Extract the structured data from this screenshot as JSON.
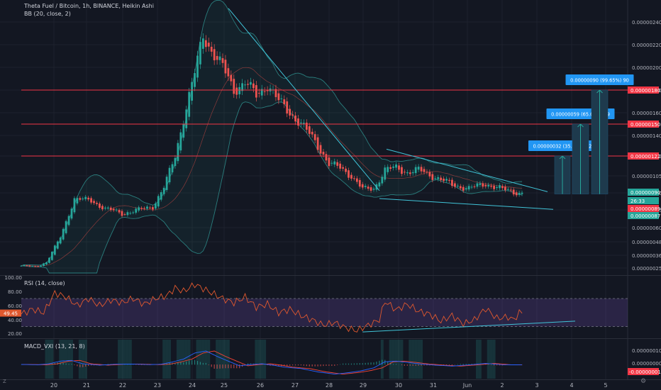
{
  "header": {
    "symbol_line": "Theta Fuel / Bitcoin, 1h, BINANCE, Heikin Ashi",
    "indicator_bb": "BB (20, close, 2)",
    "indicator_rsi": "RSI (14, close)",
    "indicator_macd": "MACD_VXI (13, 21, 8)",
    "corner_left": "Z",
    "gear_icon": "gear-icon"
  },
  "colors": {
    "background": "#131722",
    "grid": "#1e222d",
    "up_candle": "#26a69a",
    "down_candle": "#ef5350",
    "bb_band": "#2a7d7d",
    "bb_fill": "rgba(38,166,154,0.08)",
    "resistance_line": "#f23645",
    "trend_line": "#40c4d8",
    "target_bar": "#1e3a4d",
    "target_label_bg": "#2196f3",
    "rsi_line": "#e0582e",
    "rsi_band_fill": "rgba(126,87,194,0.22)",
    "macd_line": "#2962ff",
    "signal_line": "#f44336",
    "macd_bg": "rgba(38,166,154,0.20)"
  },
  "chart_data": [
    {
      "type": "candlestick",
      "name": "price",
      "price_axis": [
        "0.00000240",
        "0.00000220",
        "0.00000200",
        "0.00000180",
        "0.00000160",
        "0.00000140",
        "0.00000122",
        "0.00000105",
        "0.00000090",
        "0.00000075",
        "0.00000060",
        "0.00000048",
        "0.00000036",
        "0.00000025"
      ],
      "time_axis": [
        "20",
        "21",
        "22",
        "23",
        "24",
        "25",
        "26",
        "27",
        "28",
        "29",
        "30",
        "31",
        "Jun",
        "2",
        "3",
        "4",
        "5"
      ],
      "resistance_levels": [
        {
          "value": "0.00000180",
          "label": "0.00000180"
        },
        {
          "value": "0.00000150",
          "label": "0.00000150"
        },
        {
          "value": "0.00000122",
          "label": "0.00000122"
        }
      ],
      "price_tags": [
        {
          "label": "0.00000090",
          "color": "#26a69a"
        },
        {
          "label": "26:33",
          "color": "#26a69a"
        },
        {
          "label": "0.00000089",
          "color": "#f23645"
        },
        {
          "label": "0.00000087",
          "color": "#26a69a"
        }
      ],
      "targets": [
        {
          "label": "0.00000032 (35.01%) 32",
          "top_value": 1.22e-06
        },
        {
          "label": "0.00000059 (65.02%) 59",
          "top_value": 1.5e-06
        },
        {
          "label": "0.00000090 (99.65%) 90",
          "top_value": 1.8e-06
        }
      ],
      "anchors": [
        [
          0,
          2.7e-07
        ],
        [
          5,
          2.6e-07
        ],
        [
          9,
          3e-07
        ],
        [
          14,
          5.2e-07
        ],
        [
          19,
          8.5e-07
        ],
        [
          25,
          8.3e-07
        ],
        [
          30,
          7.6e-07
        ],
        [
          36,
          7.2e-07
        ],
        [
          42,
          7.5e-07
        ],
        [
          47,
          7.8e-07
        ],
        [
          51,
          9.5e-07
        ],
        [
          55,
          1.22e-06
        ],
        [
          58,
          1.55e-06
        ],
        [
          62,
          1.95e-06
        ],
        [
          65,
          2.28e-06
        ],
        [
          68,
          2.15e-06
        ],
        [
          72,
          2e-06
        ],
        [
          76,
          1.8e-06
        ],
        [
          80,
          1.87e-06
        ],
        [
          84,
          1.75e-06
        ],
        [
          88,
          1.85e-06
        ],
        [
          92,
          1.7e-06
        ],
        [
          96,
          1.6e-06
        ],
        [
          100,
          1.5e-06
        ],
        [
          105,
          1.35e-06
        ],
        [
          110,
          1.15e-06
        ],
        [
          114,
          1.12e-06
        ],
        [
          118,
          1.05e-06
        ],
        [
          122,
          9.3e-07
        ],
        [
          126,
          9.4e-07
        ],
        [
          130,
          1.1e-06
        ],
        [
          134,
          1.12e-06
        ],
        [
          138,
          1.08e-06
        ],
        [
          142,
          1.1e-06
        ],
        [
          148,
          1.04e-06
        ],
        [
          154,
          9.7e-07
        ],
        [
          160,
          9.4e-07
        ],
        [
          166,
          9.8e-07
        ],
        [
          172,
          9.3e-07
        ],
        [
          178,
          9e-07
        ]
      ]
    },
    {
      "type": "line",
      "name": "RSI",
      "axis": [
        "100.00",
        "80.00",
        "60.00",
        "40.00",
        "20.00"
      ],
      "levels": [
        70,
        30
      ],
      "last_label": "49.45",
      "anchors": [
        [
          0,
          48
        ],
        [
          4,
          55
        ],
        [
          8,
          50
        ],
        [
          12,
          78
        ],
        [
          16,
          72
        ],
        [
          20,
          60
        ],
        [
          24,
          70
        ],
        [
          28,
          60
        ],
        [
          32,
          68
        ],
        [
          36,
          64
        ],
        [
          40,
          70
        ],
        [
          44,
          62
        ],
        [
          48,
          70
        ],
        [
          52,
          74
        ],
        [
          55,
          85
        ],
        [
          58,
          80
        ],
        [
          62,
          90
        ],
        [
          65,
          84
        ],
        [
          68,
          78
        ],
        [
          72,
          70
        ],
        [
          76,
          64
        ],
        [
          80,
          72
        ],
        [
          84,
          58
        ],
        [
          88,
          62
        ],
        [
          92,
          50
        ],
        [
          96,
          55
        ],
        [
          100,
          46
        ],
        [
          104,
          40
        ],
        [
          108,
          32
        ],
        [
          112,
          36
        ],
        [
          116,
          28
        ],
        [
          120,
          24
        ],
        [
          124,
          32
        ],
        [
          128,
          40
        ],
        [
          130,
          66
        ],
        [
          134,
          54
        ],
        [
          138,
          62
        ],
        [
          142,
          52
        ],
        [
          146,
          48
        ],
        [
          150,
          38
        ],
        [
          154,
          46
        ],
        [
          158,
          34
        ],
        [
          162,
          40
        ],
        [
          166,
          56
        ],
        [
          170,
          42
        ],
        [
          174,
          44
        ],
        [
          176,
          40
        ],
        [
          178,
          50
        ]
      ],
      "divergence_line": {
        "from": [
          122,
          22
        ],
        "to": [
          198,
          38
        ]
      }
    },
    {
      "type": "histogram",
      "name": "MACD_VXI",
      "axis": [
        "0.00000010",
        "0.00000000",
        "-0.00000010"
      ],
      "last_label": "-0.00000001",
      "macd_anchors": [
        [
          0,
          0
        ],
        [
          6,
          -0.02
        ],
        [
          10,
          0.05
        ],
        [
          14,
          0.25
        ],
        [
          18,
          0.3
        ],
        [
          22,
          0.05
        ],
        [
          28,
          -0.05
        ],
        [
          34,
          0.02
        ],
        [
          40,
          0.03
        ],
        [
          46,
          -0.01
        ],
        [
          50,
          0.02
        ],
        [
          54,
          0.18
        ],
        [
          58,
          0.4
        ],
        [
          62,
          0.85
        ],
        [
          66,
          1.0
        ],
        [
          70,
          0.6
        ],
        [
          74,
          0.25
        ],
        [
          78,
          -0.1
        ],
        [
          82,
          0.0
        ],
        [
          86,
          0.05
        ],
        [
          90,
          -0.05
        ],
        [
          94,
          -0.2
        ],
        [
          100,
          -0.3
        ],
        [
          106,
          -0.55
        ],
        [
          112,
          -0.72
        ],
        [
          118,
          -0.58
        ],
        [
          122,
          -0.45
        ],
        [
          126,
          -0.25
        ],
        [
          130,
          0.2
        ],
        [
          134,
          0.25
        ],
        [
          138,
          0.15
        ],
        [
          142,
          0.05
        ],
        [
          148,
          -0.05
        ],
        [
          154,
          -0.12
        ],
        [
          160,
          -0.03
        ],
        [
          166,
          0.08
        ],
        [
          172,
          -0.02
        ],
        [
          178,
          -0.03
        ]
      ]
    }
  ]
}
